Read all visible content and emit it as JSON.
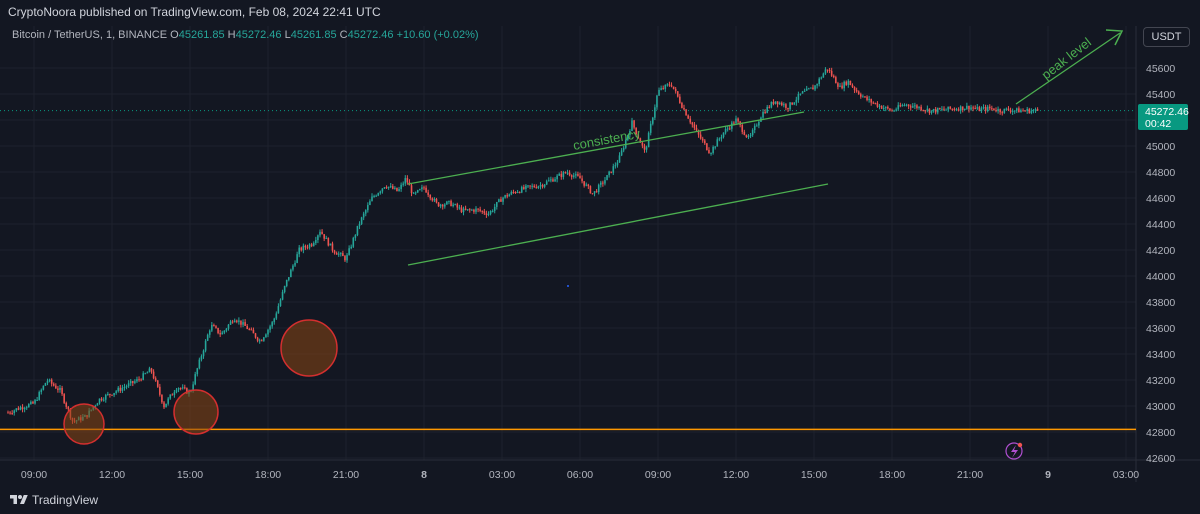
{
  "publisher": "CryptoNoora published on TradingView.com, Feb 08, 2024 22:41 UTC",
  "legend": {
    "symbol": "Bitcoin / TetherUS, 1, BINANCE",
    "o_label": "O",
    "o_value": "45261.85",
    "h_label": "H",
    "h_value": "45272.46",
    "l_label": "L",
    "l_value": "45261.85",
    "c_label": "C",
    "c_value": "45272.46",
    "change": "+10.60 (+0.02%)"
  },
  "currency": "USDT",
  "price_label": {
    "price": "45272.46",
    "countdown": "00:42"
  },
  "footer": {
    "brand": "TradingView"
  },
  "colors": {
    "background": "#131722",
    "up": "#26a69a",
    "down": "#ef5350",
    "channel": "#4caf50",
    "support": "#ff9800",
    "circle_fill": "#8b4513",
    "circle_stroke": "#d32f2f",
    "price_tag": "#089981"
  },
  "chart_data": {
    "type": "line",
    "title": "Bitcoin / TetherUS, 1, BINANCE",
    "xlabel": "",
    "ylabel": "",
    "ylim": [
      42500,
      45750
    ],
    "x_ticks": [
      "09:00",
      "12:00",
      "15:00",
      "18:00",
      "21:00",
      "8",
      "03:00",
      "06:00",
      "09:00",
      "12:00",
      "15:00",
      "18:00",
      "21:00",
      "9",
      "03:00"
    ],
    "x_tick_hours": [
      0,
      3,
      6,
      9,
      12,
      15,
      18,
      21,
      24,
      27,
      30,
      33,
      36,
      39,
      42
    ],
    "y_ticks": [
      42600,
      42800,
      43000,
      43200,
      43400,
      43600,
      43800,
      44000,
      44200,
      44400,
      44600,
      44800,
      45000,
      45200,
      45400,
      45600
    ],
    "grid": true,
    "series": [
      {
        "x_hours": [
          -1.0,
          -0.5,
          0.0,
          0.5,
          1.0,
          1.5,
          2.0,
          2.5,
          3.0,
          3.5,
          4.0,
          4.5,
          5.0,
          5.5,
          6.0,
          6.3,
          6.8,
          7.2,
          7.7,
          8.2,
          8.7,
          9.2,
          9.7,
          10.2,
          10.7,
          11.0,
          11.5,
          12.0,
          12.5,
          13.0,
          13.5,
          14.0,
          14.3,
          14.6,
          15.0,
          15.5,
          16.0,
          16.5,
          17.0,
          17.5,
          18.0,
          18.5,
          19.0,
          19.5,
          20.0,
          20.5,
          21.0,
          21.5,
          22.0,
          22.5,
          23.0,
          23.5,
          24.0,
          24.5,
          25.0,
          25.5,
          26.0,
          26.5,
          27.0,
          27.5,
          28.0,
          28.5,
          29.0,
          29.5,
          30.0,
          30.5,
          31.0,
          31.3,
          31.6,
          32.0,
          32.5,
          33.0,
          33.5,
          34.0,
          34.5,
          35.0,
          35.5,
          36.0,
          36.3,
          36.8,
          37.2,
          37.5,
          37.8,
          38.3,
          38.6
        ],
        "values": [
          42950,
          42990,
          43020,
          43200,
          43120,
          42880,
          42920,
          43050,
          43100,
          43150,
          43200,
          43280,
          43000,
          43150,
          43100,
          43300,
          43620,
          43550,
          43680,
          43600,
          43500,
          43650,
          43950,
          44200,
          44250,
          44350,
          44200,
          44130,
          44400,
          44600,
          44700,
          44650,
          44750,
          44620,
          44680,
          44550,
          44560,
          44500,
          44510,
          44480,
          44600,
          44650,
          44680,
          44700,
          44750,
          44800,
          44750,
          44630,
          44750,
          44900,
          45180,
          44950,
          45420,
          45480,
          45280,
          45100,
          44950,
          45100,
          45200,
          45050,
          45250,
          45350,
          45300,
          45400,
          45450,
          45600,
          45450,
          45500,
          45430,
          45360,
          45310,
          45270,
          45320,
          45300,
          45270,
          45280,
          45290,
          45300,
          45280,
          45290,
          45272,
          45280,
          45272,
          45272,
          45272
        ],
        "name": ""
      }
    ],
    "last_price": 45272.46,
    "support_level": 42820,
    "annotations": [
      "consistency",
      "peak level"
    ]
  }
}
